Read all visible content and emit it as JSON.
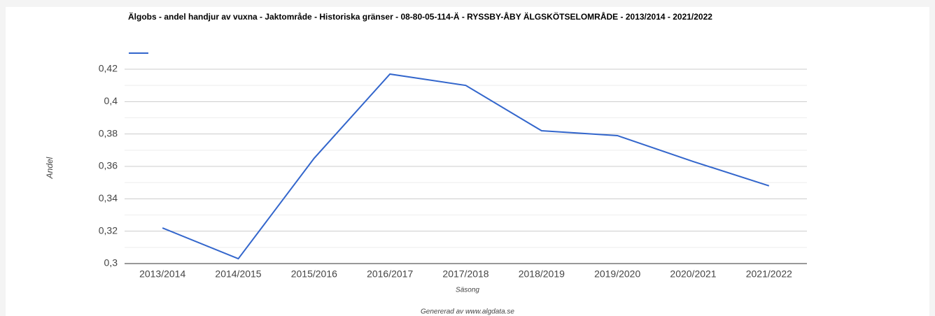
{
  "chart_data": {
    "type": "line",
    "title": "Älgobs - andel handjur av vuxna - Jaktområde - Historiska gränser - 08-80-05-114-Ä - RYSSBY-ÅBY ÄLGSKÖTSELOMRÅDE - 2013/2014 - 2021/2022",
    "x_label": "Säsong",
    "y_label": "Andel",
    "footer": "Genererad av www.algdata.se",
    "categories": [
      "2013/2014",
      "2014/2015",
      "2015/2016",
      "2016/2017",
      "2017/2018",
      "2018/2019",
      "2019/2020",
      "2020/2021",
      "2021/2022"
    ],
    "series": [
      {
        "color": "#3366cc",
        "values": [
          0.322,
          0.303,
          0.365,
          0.417,
          0.41,
          0.382,
          0.379,
          0.363,
          0.348
        ]
      }
    ],
    "ylim": [
      0.3,
      0.42
    ],
    "yticks": [
      {
        "value": 0.3,
        "label": "0,3"
      },
      {
        "value": 0.32,
        "label": "0,32"
      },
      {
        "value": 0.34,
        "label": "0,34"
      },
      {
        "value": 0.36,
        "label": "0,36"
      },
      {
        "value": 0.38,
        "label": "0,38"
      },
      {
        "value": 0.4,
        "label": "0,4"
      },
      {
        "value": 0.42,
        "label": "0,42"
      }
    ],
    "yminor": [
      0.31,
      0.33,
      0.35,
      0.37,
      0.39,
      0.41
    ],
    "grid": true
  }
}
